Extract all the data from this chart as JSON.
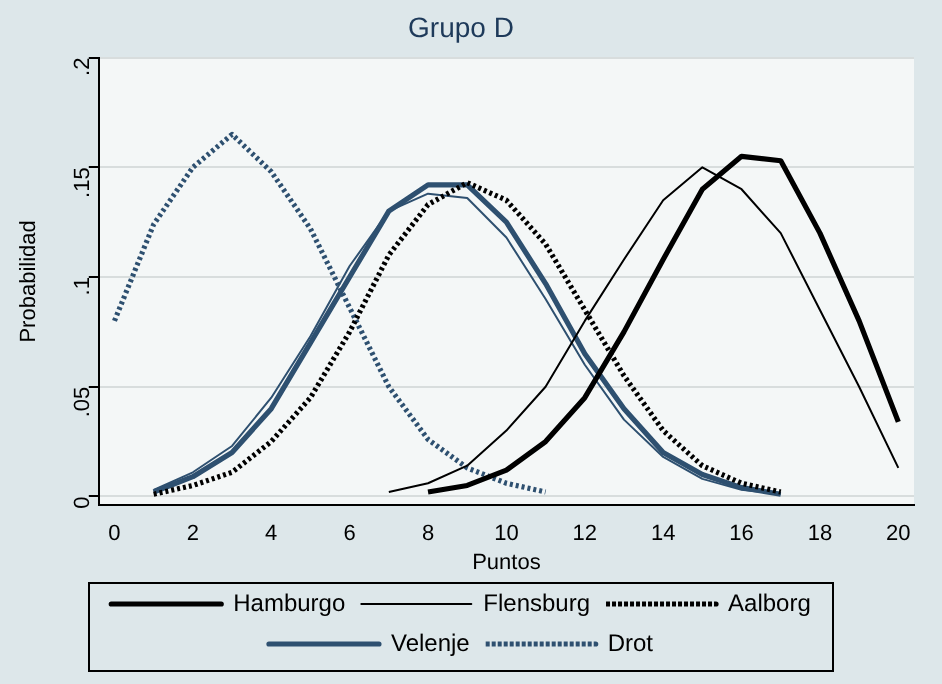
{
  "chart_data": {
    "type": "line",
    "title": "Grupo D",
    "xlabel": "Puntos",
    "ylabel": "Probabilidad",
    "xlim": [
      -0.4,
      20.4
    ],
    "xticks": [
      0,
      2,
      4,
      6,
      8,
      10,
      12,
      14,
      16,
      18,
      20
    ],
    "ylim": [
      -0.004,
      0.2
    ],
    "yticks": [
      0,
      {
        "value": 0.05,
        "label": ".05"
      },
      {
        "value": 0.1,
        "label": ".1"
      },
      {
        "value": 0.15,
        "label": ".15"
      },
      {
        "value": 0.2,
        "label": ".2"
      }
    ],
    "grid": "y",
    "legend": "bottom",
    "marker": "none",
    "series": [
      {
        "name": "Hamburgo",
        "color": "#000000",
        "line_style": "solid",
        "x": [
          8,
          9,
          10,
          11,
          12,
          13,
          14,
          15,
          16,
          17,
          18,
          19,
          20
        ],
        "values": [
          0.002,
          0.005,
          0.012,
          0.025,
          0.045,
          0.075,
          0.108,
          0.14,
          0.155,
          0.153,
          0.12,
          0.08,
          0.034
        ]
      },
      {
        "name": "Flensburg",
        "color": "#000000",
        "line_style": "solid",
        "x": [
          7,
          8,
          9,
          10,
          11,
          12,
          13,
          14,
          15,
          16,
          17,
          18,
          19,
          20
        ],
        "values": [
          0.002,
          0.006,
          0.014,
          0.03,
          0.05,
          0.08,
          0.108,
          0.135,
          0.15,
          0.14,
          0.12,
          0.085,
          0.05,
          0.013
        ]
      },
      {
        "name": "Aalborg",
        "color": "#000000",
        "line_style": "dotted",
        "x": [
          1,
          2,
          3,
          4,
          5,
          6,
          7,
          8,
          9,
          10,
          11,
          12,
          13,
          14,
          15,
          16,
          17
        ],
        "values": [
          0.001,
          0.005,
          0.011,
          0.025,
          0.045,
          0.075,
          0.11,
          0.133,
          0.143,
          0.135,
          0.115,
          0.085,
          0.055,
          0.03,
          0.014,
          0.006,
          0.002
        ]
      },
      {
        "name": "Velenje",
        "color": "#2e5070",
        "line_style": "solid",
        "x": [
          1,
          2,
          3,
          4,
          5,
          6,
          7,
          8,
          9,
          10,
          11,
          12,
          13,
          14,
          15,
          16,
          17
        ],
        "values": [
          0.002,
          0.009,
          0.02,
          0.04,
          0.07,
          0.1,
          0.13,
          0.142,
          0.142,
          0.125,
          0.097,
          0.065,
          0.04,
          0.02,
          0.01,
          0.004,
          0.001
        ]
      },
      {
        "color": "#2e5070",
        "line_style": "solid",
        "x": [
          1,
          2,
          3,
          4,
          5,
          6,
          7,
          8,
          9,
          10,
          11,
          12,
          13,
          14,
          15,
          16,
          17
        ],
        "values": [
          0.003,
          0.011,
          0.023,
          0.045,
          0.073,
          0.105,
          0.13,
          0.138,
          0.136,
          0.118,
          0.09,
          0.06,
          0.035,
          0.018,
          0.008,
          0.003,
          0.001
        ]
      },
      {
        "name": "Drot",
        "color": "#2e5070",
        "line_style": "dotted",
        "x": [
          0,
          1,
          2,
          3,
          4,
          5,
          6,
          7,
          8,
          9,
          10,
          11
        ],
        "values": [
          0.08,
          0.124,
          0.15,
          0.165,
          0.148,
          0.122,
          0.086,
          0.05,
          0.026,
          0.013,
          0.006,
          0.002
        ]
      }
    ]
  }
}
